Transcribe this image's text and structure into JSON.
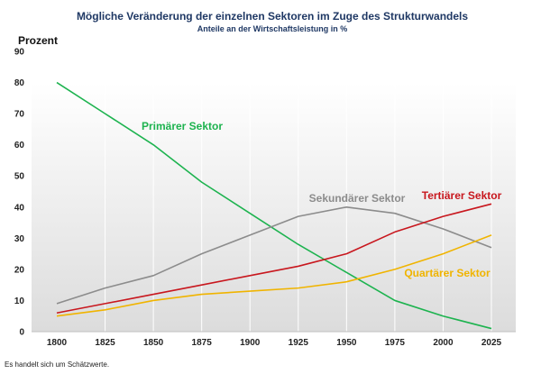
{
  "chart_data": {
    "type": "line",
    "title": "Mögliche Veränderung der einzelnen Sektoren im Zuge des Strukturwandels",
    "subtitle": "Anteile an der Wirtschaftsleistung in %",
    "ylabel": "Prozent",
    "xlabel": "",
    "x": [
      "1800",
      "1825",
      "1850",
      "1875",
      "1900",
      "1925",
      "1950",
      "1975",
      "2000",
      "2025"
    ],
    "yticks": [
      0,
      10,
      20,
      30,
      40,
      50,
      60,
      70,
      80,
      90
    ],
    "ylim": [
      0,
      90
    ],
    "grid": "vertical",
    "legend": "none",
    "series": [
      {
        "name": "Primärer Sektor",
        "color": "#1db34f",
        "values": [
          80,
          70,
          60,
          48,
          38,
          28,
          19,
          10,
          5,
          1
        ]
      },
      {
        "name": "Sekundärer Sektor",
        "color": "#8c8c8c",
        "values": [
          9,
          14,
          18,
          25,
          31,
          37,
          40,
          38,
          33,
          27
        ]
      },
      {
        "name": "Tertiärer Sektor",
        "color": "#c8171e",
        "values": [
          6,
          9,
          12,
          15,
          18,
          21,
          25,
          32,
          37,
          41
        ]
      },
      {
        "name": "Quartärer Sektor",
        "color": "#f0b400",
        "values": [
          5,
          7,
          10,
          12,
          13,
          14,
          16,
          20,
          25,
          31
        ]
      }
    ]
  },
  "footnote": "Es handelt sich um Schätzwerte."
}
